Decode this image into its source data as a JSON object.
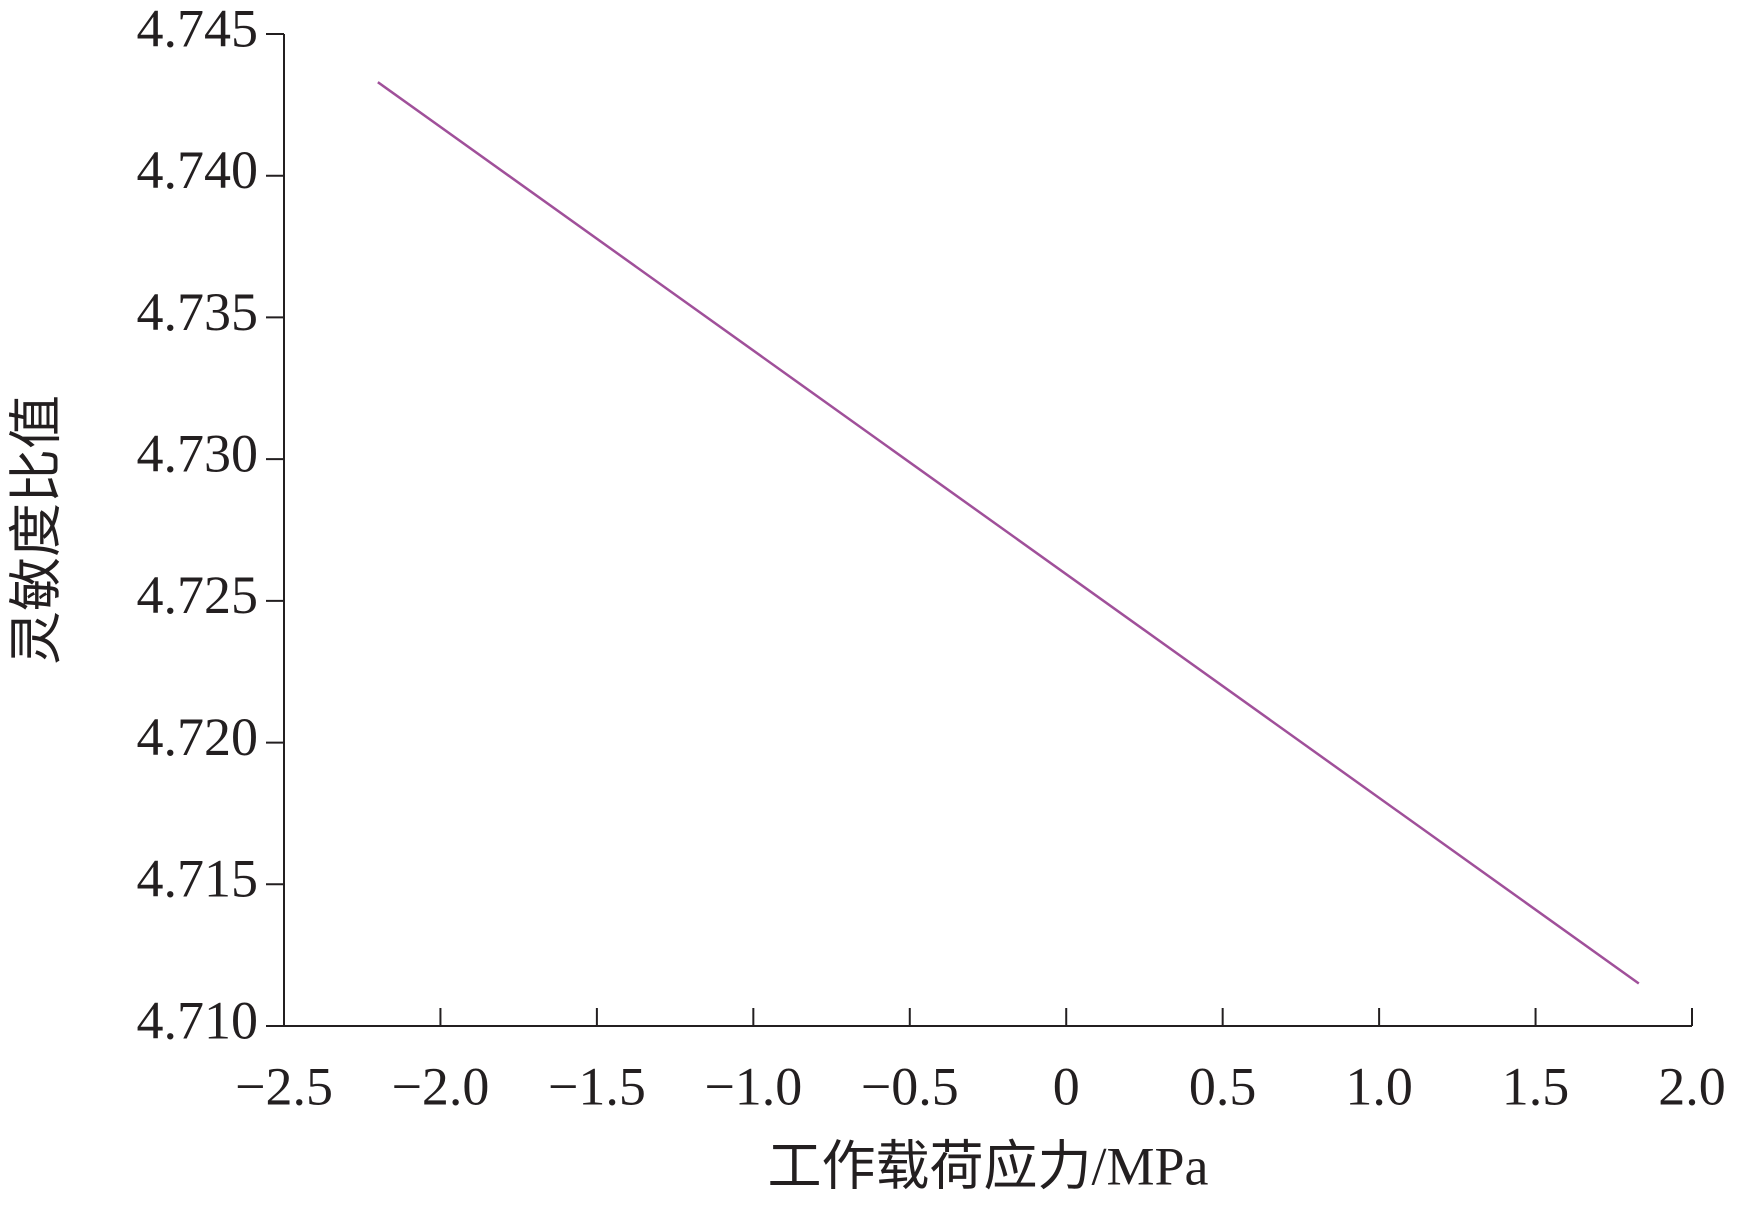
{
  "chart_data": {
    "type": "line",
    "x_label": "工作载荷应力/MPa",
    "y_label": "灵敏度比值",
    "x": [
      -2.2,
      1.83
    ],
    "series": [
      {
        "color": "#a0509a",
        "values": [
          4.7433,
          4.7115
        ]
      }
    ],
    "xlim": [
      -2.5,
      2.0
    ],
    "ylim": [
      4.71,
      4.745
    ],
    "xticks": [
      {
        "value": -2.5,
        "label": "−2.5"
      },
      {
        "value": -2.0,
        "label": "−2.0"
      },
      {
        "value": -1.5,
        "label": "−1.5"
      },
      {
        "value": -1.0,
        "label": "−1.0"
      },
      {
        "value": -0.5,
        "label": "−0.5"
      },
      0,
      {
        "value": 0.5,
        "label": "0.5"
      },
      {
        "value": 1.0,
        "label": "1.0"
      },
      {
        "value": 1.5,
        "label": "1.5"
      },
      {
        "value": 2.0,
        "label": "2.0"
      }
    ],
    "yticks": [
      {
        "value": 4.71,
        "label": "4.710"
      },
      4.715,
      {
        "value": 4.72,
        "label": "4.720"
      },
      4.725,
      {
        "value": 4.73,
        "label": "4.730"
      },
      4.735,
      {
        "value": 4.74,
        "label": "4.740"
      },
      4.745
    ],
    "grid": false
  }
}
